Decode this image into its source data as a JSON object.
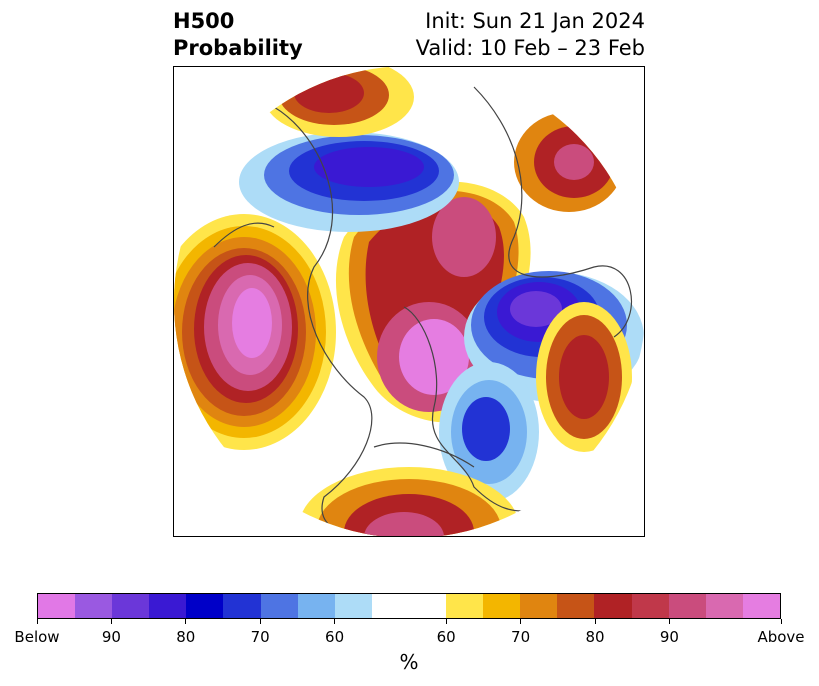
{
  "title": {
    "left_line1": "H500",
    "left_line2": "Probability",
    "right_line1": "Init: Sun 21 Jan 2024",
    "right_line2": "Valid: 10 Feb – 23 Feb"
  },
  "colorbar": {
    "colors": [
      "#e178e6",
      "#9a59e1",
      "#6b37d9",
      "#3a19d3",
      "#0000c8",
      "#2233d4",
      "#4e74e3",
      "#77b3f0",
      "#addcf7",
      "#ffffff",
      "#ffffff",
      "#ffe54a",
      "#f3b600",
      "#e08510",
      "#c65417",
      "#b02225",
      "#c0384a",
      "#ca4c7d",
      "#d969b0",
      "#e57de1"
    ],
    "labels": [
      "Below",
      "90",
      "80",
      "70",
      "60",
      "60",
      "70",
      "80",
      "90",
      "Above"
    ],
    "unit": "%"
  }
}
